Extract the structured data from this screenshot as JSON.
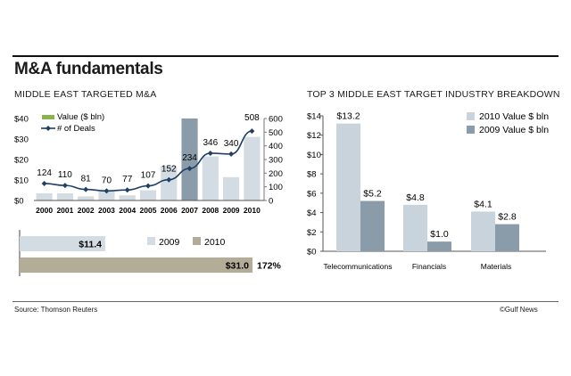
{
  "title": "M&A fundamentals",
  "source": "Source: Thomson Reuters",
  "credit": "©Gulf News",
  "chart_data": [
    {
      "type": "bar+line",
      "title": "MIDDLE EAST TARGETED M&A",
      "categories": [
        "2000",
        "2001",
        "2002",
        "2003",
        "2004",
        "2005",
        "2006",
        "2007",
        "2008",
        "2009",
        "2010"
      ],
      "series": [
        {
          "name": "Value ($ bln)",
          "type": "bar",
          "axis": "left",
          "color": "#d3dce3",
          "values": [
            3.5,
            3.5,
            2.0,
            5.0,
            2.5,
            5.0,
            17.0,
            40.0,
            21.5,
            11.4,
            31.0
          ]
        },
        {
          "name": "# of Deals",
          "type": "line",
          "axis": "right",
          "color": "#1f3f66",
          "values": [
            124,
            110,
            81,
            70,
            77,
            107,
            152,
            234,
            346,
            340,
            508
          ]
        }
      ],
      "highlight": {
        "category": "2007",
        "color": "#8a9baa"
      },
      "left_ticks": [
        "$0",
        "$10",
        "$20",
        "$30",
        "$40"
      ],
      "left_ylim": [
        0,
        40
      ],
      "right_ticks": [
        "0",
        "100",
        "200",
        "300",
        "400",
        "500",
        "600"
      ],
      "right_ylim": [
        0,
        600
      ],
      "line_labels": [
        "124",
        "110",
        "81",
        "70",
        "77",
        "107",
        "152",
        "234",
        "346",
        "340",
        "508"
      ],
      "legend": [
        "Value ($ bln)",
        "# of Deals"
      ]
    },
    {
      "type": "bar",
      "orientation": "horizontal",
      "categories": [
        "2009",
        "2010"
      ],
      "values": [
        11.4,
        31.0
      ],
      "labels": [
        "$11.4",
        "$31.0"
      ],
      "colors": [
        "#d3dce3",
        "#b3ad97"
      ],
      "change_label": "172%",
      "legend": [
        "2009",
        "2010"
      ]
    },
    {
      "type": "bar",
      "title": "TOP 3 MIDDLE EAST TARGET INDUSTRY BREAKDOWN",
      "categories": [
        "Telecommunications",
        "Financials",
        "Materials"
      ],
      "series": [
        {
          "name": "2010 Value $ bln",
          "color": "#c9d3dc",
          "values": [
            13.2,
            4.8,
            4.1
          ],
          "labels": [
            "$13.2",
            "$4.8",
            "$4.1"
          ]
        },
        {
          "name": "2009 Value $ bln",
          "color": "#8a9baa",
          "values": [
            5.2,
            1.0,
            2.8
          ],
          "labels": [
            "$5.2",
            "$1.0",
            "$2.8"
          ]
        }
      ],
      "yticks": [
        "$0",
        "$2",
        "$4",
        "$6",
        "$8",
        "$10",
        "$12",
        "$14"
      ],
      "ylim": [
        0,
        14
      ]
    }
  ]
}
